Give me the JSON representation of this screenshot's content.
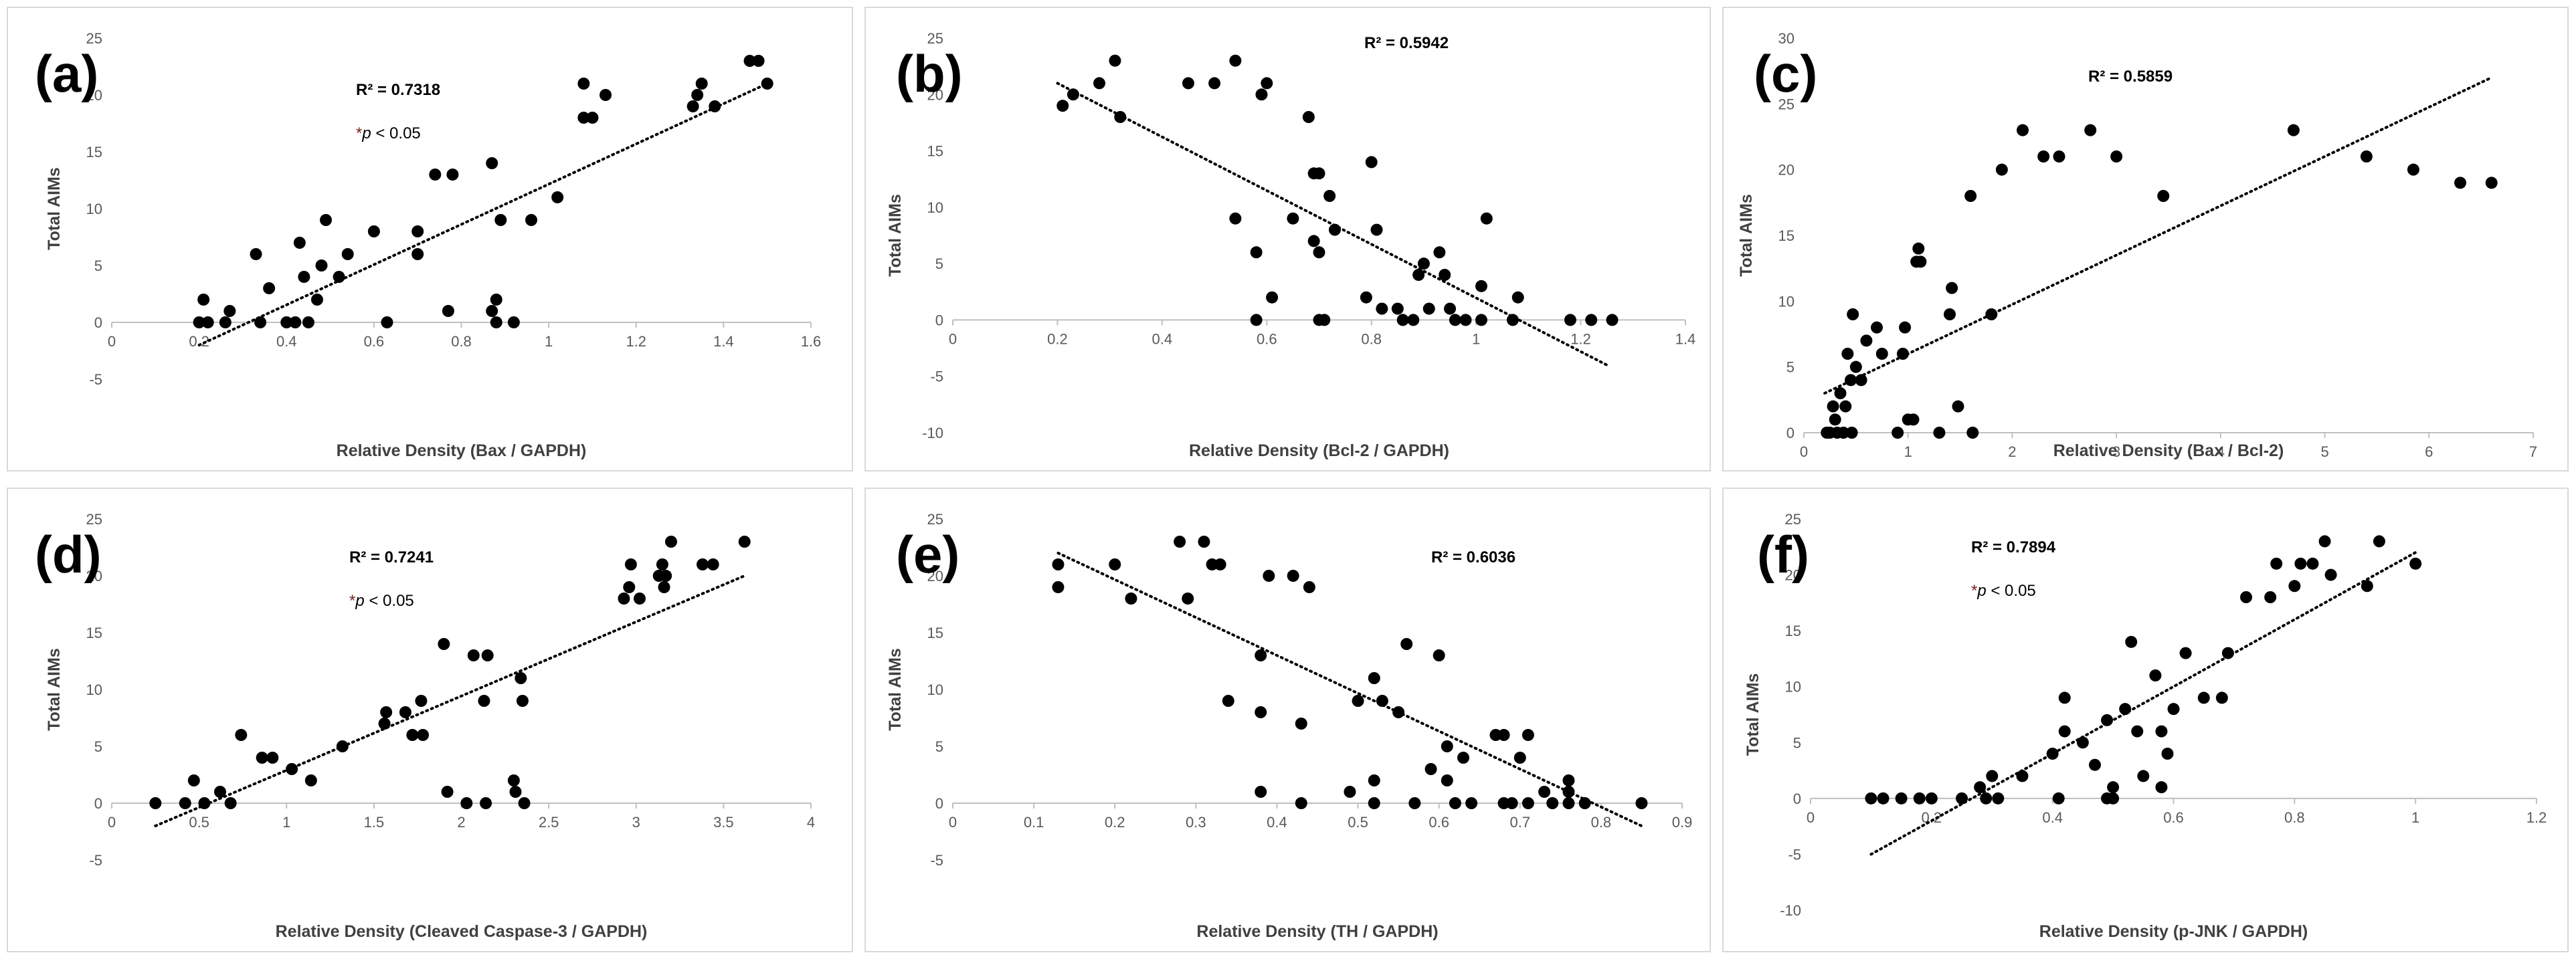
{
  "chart_data": [
    {
      "type": "scatter",
      "panel_label": "(a)",
      "xlabel": "Relative Density (Bax / GAPDH)",
      "ylabel": "Total AIMs",
      "xlim": [
        0,
        1.6
      ],
      "ylim": [
        -5,
        25
      ],
      "xticks": [
        0,
        0.2,
        0.4,
        0.6,
        0.8,
        1,
        1.2,
        1.4,
        1.6
      ],
      "xtick_labels": [
        "0",
        "0.2",
        "0.4",
        "0.6",
        "0.8",
        "1",
        "1.2",
        "1.4",
        "1.6"
      ],
      "yticks": [
        -5,
        0,
        5,
        10,
        15,
        20,
        25
      ],
      "r2_label": "R² = 0.7318",
      "p_star": "*",
      "p_italic": "p",
      "p_rest": " < 0.05",
      "trendline": [
        [
          0.2,
          -2
        ],
        [
          1.5,
          21
        ]
      ],
      "points": [
        [
          0.2,
          0
        ],
        [
          0.21,
          2
        ],
        [
          0.22,
          0
        ],
        [
          0.26,
          0
        ],
        [
          0.27,
          1
        ],
        [
          0.33,
          6
        ],
        [
          0.34,
          0
        ],
        [
          0.36,
          3
        ],
        [
          0.4,
          0
        ],
        [
          0.42,
          0
        ],
        [
          0.43,
          7
        ],
        [
          0.44,
          4
        ],
        [
          0.45,
          0
        ],
        [
          0.47,
          2
        ],
        [
          0.48,
          5
        ],
        [
          0.49,
          9
        ],
        [
          0.52,
          4
        ],
        [
          0.54,
          6
        ],
        [
          0.6,
          8
        ],
        [
          0.63,
          0
        ],
        [
          0.7,
          8
        ],
        [
          0.7,
          6
        ],
        [
          0.74,
          13
        ],
        [
          0.77,
          1
        ],
        [
          0.78,
          13
        ],
        [
          0.87,
          14
        ],
        [
          0.87,
          1
        ],
        [
          0.88,
          2
        ],
        [
          0.88,
          0
        ],
        [
          0.89,
          9
        ],
        [
          0.92,
          0
        ],
        [
          0.96,
          9
        ],
        [
          1.02,
          11
        ],
        [
          1.08,
          21
        ],
        [
          1.08,
          18
        ],
        [
          1.1,
          18
        ],
        [
          1.13,
          20
        ],
        [
          1.33,
          19
        ],
        [
          1.34,
          20
        ],
        [
          1.35,
          21
        ],
        [
          1.38,
          19
        ],
        [
          1.46,
          23
        ],
        [
          1.48,
          23
        ],
        [
          1.5,
          21
        ]
      ]
    },
    {
      "type": "scatter",
      "panel_label": "(b)",
      "xlabel": "Relative Density  (Bcl-2  / GAPDH)",
      "ylabel": "Total AIMs",
      "xlim": [
        0,
        1.4
      ],
      "ylim": [
        -10,
        25
      ],
      "xticks": [
        0,
        0.2,
        0.4,
        0.6,
        0.8,
        1,
        1.2,
        1.4
      ],
      "xtick_labels": [
        "0",
        "0.2",
        "0.4",
        "0.6",
        "0.8",
        "1",
        "1.2",
        "1.4"
      ],
      "yticks": [
        -10,
        -5,
        0,
        5,
        10,
        15,
        20,
        25
      ],
      "r2_label": "R² = 0.5942",
      "trendline": [
        [
          0.2,
          21
        ],
        [
          1.25,
          -4
        ]
      ],
      "points": [
        [
          0.21,
          19
        ],
        [
          0.23,
          20
        ],
        [
          0.28,
          21
        ],
        [
          0.31,
          23
        ],
        [
          0.32,
          18
        ],
        [
          0.45,
          21
        ],
        [
          0.5,
          21
        ],
        [
          0.54,
          23
        ],
        [
          0.54,
          9
        ],
        [
          0.58,
          6
        ],
        [
          0.59,
          20
        ],
        [
          0.6,
          21
        ],
        [
          0.58,
          0
        ],
        [
          0.61,
          2
        ],
        [
          0.65,
          9
        ],
        [
          0.68,
          18
        ],
        [
          0.69,
          13
        ],
        [
          0.7,
          13
        ],
        [
          0.69,
          7
        ],
        [
          0.7,
          6
        ],
        [
          0.7,
          0
        ],
        [
          0.71,
          0
        ],
        [
          0.72,
          11
        ],
        [
          0.73,
          8
        ],
        [
          0.79,
          2
        ],
        [
          0.8,
          14
        ],
        [
          0.81,
          8
        ],
        [
          0.82,
          1
        ],
        [
          0.85,
          1
        ],
        [
          0.86,
          0
        ],
        [
          0.88,
          0
        ],
        [
          0.89,
          4
        ],
        [
          0.9,
          5
        ],
        [
          0.91,
          1
        ],
        [
          0.93,
          6
        ],
        [
          0.94,
          4
        ],
        [
          0.95,
          1
        ],
        [
          0.96,
          0
        ],
        [
          0.98,
          0
        ],
        [
          1.01,
          3
        ],
        [
          1.02,
          9
        ],
        [
          1.01,
          0
        ],
        [
          1.07,
          0
        ],
        [
          1.08,
          2
        ],
        [
          1.18,
          0
        ],
        [
          1.22,
          0
        ],
        [
          1.26,
          0
        ]
      ]
    },
    {
      "type": "scatter",
      "panel_label": "(c)",
      "xlabel": "Relative Density (Bax / Bcl-2)",
      "ylabel": "Total AIMs",
      "xlim": [
        0,
        7
      ],
      "ylim": [
        0,
        30
      ],
      "xticks": [
        0,
        1,
        2,
        3,
        4,
        5,
        6,
        7
      ],
      "xtick_labels": [
        "0",
        "1",
        "2",
        "3",
        "4",
        "5",
        "6",
        "7"
      ],
      "yticks": [
        0,
        5,
        10,
        15,
        20,
        25,
        30
      ],
      "r2_label": "R² = 0.5859",
      "trendline": [
        [
          0.2,
          3
        ],
        [
          6.6,
          27
        ]
      ],
      "points": [
        [
          0.22,
          0
        ],
        [
          0.25,
          0
        ],
        [
          0.28,
          2
        ],
        [
          0.3,
          1
        ],
        [
          0.32,
          0
        ],
        [
          0.35,
          3
        ],
        [
          0.38,
          0
        ],
        [
          0.4,
          2
        ],
        [
          0.42,
          6
        ],
        [
          0.45,
          4
        ],
        [
          0.46,
          0
        ],
        [
          0.47,
          9
        ],
        [
          0.5,
          5
        ],
        [
          0.55,
          4
        ],
        [
          0.6,
          7
        ],
        [
          0.7,
          8
        ],
        [
          0.75,
          6
        ],
        [
          0.9,
          0
        ],
        [
          0.95,
          6
        ],
        [
          0.97,
          8
        ],
        [
          1.0,
          1
        ],
        [
          1.05,
          1
        ],
        [
          1.08,
          13
        ],
        [
          1.1,
          14
        ],
        [
          1.12,
          13
        ],
        [
          1.3,
          0
        ],
        [
          1.4,
          9
        ],
        [
          1.42,
          11
        ],
        [
          1.48,
          2
        ],
        [
          1.6,
          18
        ],
        [
          1.62,
          0
        ],
        [
          1.8,
          9
        ],
        [
          1.9,
          20
        ],
        [
          2.1,
          23
        ],
        [
          2.3,
          21
        ],
        [
          2.45,
          21
        ],
        [
          2.75,
          23
        ],
        [
          3.0,
          21
        ],
        [
          3.45,
          18
        ],
        [
          4.7,
          23
        ],
        [
          5.4,
          21
        ],
        [
          5.85,
          20
        ],
        [
          6.3,
          19
        ],
        [
          6.6,
          19
        ]
      ]
    },
    {
      "type": "scatter",
      "panel_label": "(d)",
      "xlabel": "Relative Density  (Cleaved Caspase-3 / GAPDH)",
      "ylabel": "Total AIMs",
      "xlim": [
        0,
        4
      ],
      "ylim": [
        -5,
        25
      ],
      "xticks": [
        0,
        0.5,
        1,
        1.5,
        2,
        2.5,
        3,
        3.5,
        4
      ],
      "xtick_labels": [
        "0",
        "0.5",
        "1",
        "1.5",
        "2",
        "2.5",
        "3",
        "3.5",
        "4"
      ],
      "yticks": [
        -5,
        0,
        5,
        10,
        15,
        20,
        25
      ],
      "r2_label": "R² = 0.7241",
      "p_star": "*",
      "p_italic": "p",
      "p_rest": " < 0.05",
      "trendline": [
        [
          0.25,
          -2
        ],
        [
          3.62,
          20
        ]
      ],
      "points": [
        [
          0.25,
          0
        ],
        [
          0.42,
          0
        ],
        [
          0.47,
          2
        ],
        [
          0.53,
          0
        ],
        [
          0.62,
          1
        ],
        [
          0.68,
          0
        ],
        [
          0.74,
          6
        ],
        [
          0.86,
          4
        ],
        [
          0.92,
          4
        ],
        [
          1.03,
          3
        ],
        [
          1.14,
          2
        ],
        [
          1.32,
          5
        ],
        [
          1.56,
          7
        ],
        [
          1.57,
          8
        ],
        [
          1.68,
          8
        ],
        [
          1.72,
          6
        ],
        [
          1.77,
          9
        ],
        [
          1.78,
          6
        ],
        [
          1.9,
          14
        ],
        [
          1.92,
          1
        ],
        [
          2.03,
          0
        ],
        [
          2.07,
          13
        ],
        [
          2.13,
          9
        ],
        [
          2.14,
          0
        ],
        [
          2.15,
          13
        ],
        [
          2.3,
          2
        ],
        [
          2.31,
          1
        ],
        [
          2.34,
          11
        ],
        [
          2.35,
          9
        ],
        [
          2.36,
          0
        ],
        [
          2.93,
          18
        ],
        [
          2.96,
          19
        ],
        [
          2.97,
          21
        ],
        [
          3.02,
          18
        ],
        [
          3.13,
          20
        ],
        [
          3.15,
          21
        ],
        [
          3.16,
          19
        ],
        [
          3.17,
          20
        ],
        [
          3.2,
          23
        ],
        [
          3.38,
          21
        ],
        [
          3.44,
          21
        ],
        [
          3.62,
          23
        ]
      ]
    },
    {
      "type": "scatter",
      "panel_label": "(e)",
      "xlabel": "Relative Density  (TH / GAPDH)",
      "ylabel": "Total AIMs",
      "xlim": [
        0,
        0.9
      ],
      "ylim": [
        -5,
        25
      ],
      "xticks": [
        0,
        0.1,
        0.2,
        0.3,
        0.4,
        0.5,
        0.6,
        0.7,
        0.8,
        0.9
      ],
      "xtick_labels": [
        "0",
        "0.1",
        "0.2",
        "0.3",
        "0.4",
        "0.5",
        "0.6",
        "0.7",
        "0.8",
        "0.9"
      ],
      "yticks": [
        -5,
        0,
        5,
        10,
        15,
        20,
        25
      ],
      "r2_label": "R² = 0.6036",
      "trendline": [
        [
          0.13,
          22
        ],
        [
          0.85,
          -2
        ]
      ],
      "points": [
        [
          0.13,
          21
        ],
        [
          0.13,
          19
        ],
        [
          0.2,
          21
        ],
        [
          0.22,
          18
        ],
        [
          0.28,
          23
        ],
        [
          0.29,
          18
        ],
        [
          0.31,
          23
        ],
        [
          0.32,
          21
        ],
        [
          0.33,
          21
        ],
        [
          0.34,
          9
        ],
        [
          0.38,
          13
        ],
        [
          0.38,
          8
        ],
        [
          0.39,
          20
        ],
        [
          0.38,
          1
        ],
        [
          0.42,
          20
        ],
        [
          0.43,
          7
        ],
        [
          0.44,
          19
        ],
        [
          0.43,
          0
        ],
        [
          0.49,
          1
        ],
        [
          0.5,
          9
        ],
        [
          0.52,
          11
        ],
        [
          0.52,
          2
        ],
        [
          0.52,
          0
        ],
        [
          0.53,
          9
        ],
        [
          0.55,
          8
        ],
        [
          0.56,
          14
        ],
        [
          0.57,
          0
        ],
        [
          0.59,
          3
        ],
        [
          0.6,
          13
        ],
        [
          0.61,
          5
        ],
        [
          0.61,
          2
        ],
        [
          0.62,
          0
        ],
        [
          0.63,
          4
        ],
        [
          0.64,
          0
        ],
        [
          0.67,
          6
        ],
        [
          0.68,
          6
        ],
        [
          0.68,
          0
        ],
        [
          0.69,
          0
        ],
        [
          0.7,
          4
        ],
        [
          0.71,
          6
        ],
        [
          0.71,
          0
        ],
        [
          0.73,
          1
        ],
        [
          0.74,
          0
        ],
        [
          0.76,
          2
        ],
        [
          0.76,
          1
        ],
        [
          0.76,
          0
        ],
        [
          0.78,
          0
        ],
        [
          0.85,
          0
        ]
      ]
    },
    {
      "type": "scatter",
      "panel_label": "(f)",
      "xlabel": "Relative Density (p-JNK / GAPDH)",
      "ylabel": "Total AIMs",
      "xlim": [
        0,
        1.2
      ],
      "ylim": [
        -10,
        25
      ],
      "xticks": [
        0,
        0.2,
        0.4,
        0.6,
        0.8,
        1,
        1.2
      ],
      "xtick_labels": [
        "0",
        "0.2",
        "0.4",
        "0.6",
        "0.8",
        "1",
        "1.2"
      ],
      "yticks": [
        -10,
        -5,
        0,
        5,
        10,
        15,
        20,
        25
      ],
      "r2_label": "R² = 0.7894",
      "p_star": "*",
      "p_italic": "p",
      "p_rest": " < 0.05",
      "trendline": [
        [
          0.1,
          -5
        ],
        [
          1.0,
          22
        ]
      ],
      "points": [
        [
          0.1,
          0
        ],
        [
          0.12,
          0
        ],
        [
          0.15,
          0
        ],
        [
          0.18,
          0
        ],
        [
          0.2,
          0
        ],
        [
          0.25,
          0
        ],
        [
          0.28,
          1
        ],
        [
          0.29,
          0
        ],
        [
          0.3,
          2
        ],
        [
          0.31,
          0
        ],
        [
          0.35,
          2
        ],
        [
          0.4,
          4
        ],
        [
          0.41,
          0
        ],
        [
          0.42,
          6
        ],
        [
          0.42,
          9
        ],
        [
          0.45,
          5
        ],
        [
          0.47,
          3
        ],
        [
          0.49,
          7
        ],
        [
          0.49,
          0
        ],
        [
          0.5,
          1
        ],
        [
          0.5,
          0
        ],
        [
          0.52,
          8
        ],
        [
          0.53,
          14
        ],
        [
          0.54,
          6
        ],
        [
          0.55,
          2
        ],
        [
          0.57,
          11
        ],
        [
          0.58,
          6
        ],
        [
          0.59,
          4
        ],
        [
          0.58,
          1
        ],
        [
          0.6,
          8
        ],
        [
          0.62,
          13
        ],
        [
          0.65,
          9
        ],
        [
          0.68,
          9
        ],
        [
          0.69,
          13
        ],
        [
          0.72,
          18
        ],
        [
          0.76,
          18
        ],
        [
          0.77,
          21
        ],
        [
          0.8,
          19
        ],
        [
          0.81,
          21
        ],
        [
          0.83,
          21
        ],
        [
          0.85,
          23
        ],
        [
          0.86,
          20
        ],
        [
          0.92,
          19
        ],
        [
          0.94,
          23
        ],
        [
          1.0,
          21
        ]
      ]
    }
  ]
}
